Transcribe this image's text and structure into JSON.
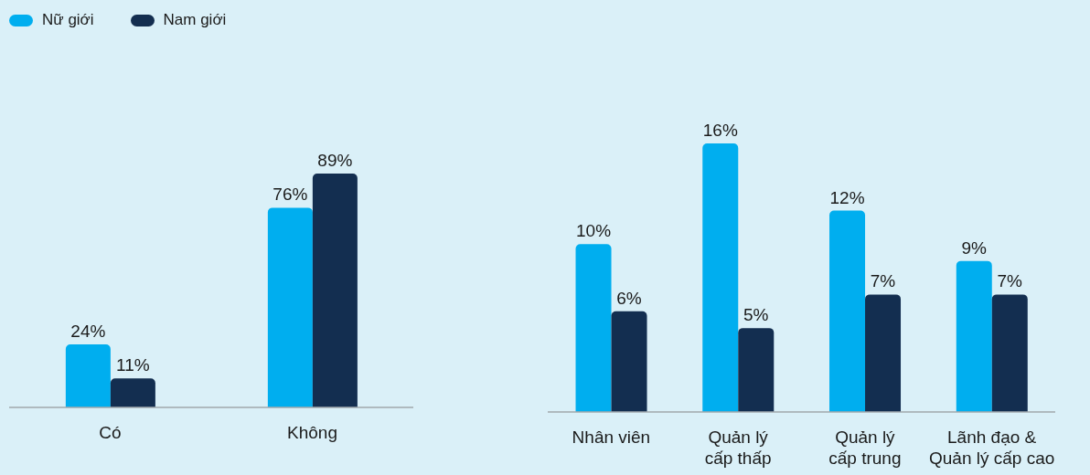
{
  "chart_data": [
    {
      "type": "bar",
      "categories": [
        "Có",
        "Không"
      ],
      "series": [
        {
          "name": "Nữ giới",
          "color": "#00aeef",
          "values": [
            24,
            76
          ],
          "value_labels": [
            "24%",
            "76%"
          ]
        },
        {
          "name": "Nam giới",
          "color": "#132e50",
          "values": [
            11,
            89
          ],
          "value_labels": [
            "11%",
            "89%"
          ]
        }
      ],
      "legend": "top left",
      "grid": false
    },
    {
      "type": "bar",
      "categories": [
        "Nhân viên",
        "Quản lý cấp thấp",
        "Quản lý cấp trung",
        "Lãnh đạo & Quản lý cấp cao"
      ],
      "series": [
        {
          "color": "#00aeef",
          "values": [
            10,
            16,
            12,
            9
          ],
          "value_labels": [
            "10%",
            "16%",
            "12%",
            "9%"
          ]
        },
        {
          "color": "#132e50",
          "values": [
            6,
            5,
            7,
            7
          ],
          "value_labels": [
            "6%",
            "5%",
            "7%",
            "7%"
          ]
        }
      ],
      "grid": false
    }
  ]
}
